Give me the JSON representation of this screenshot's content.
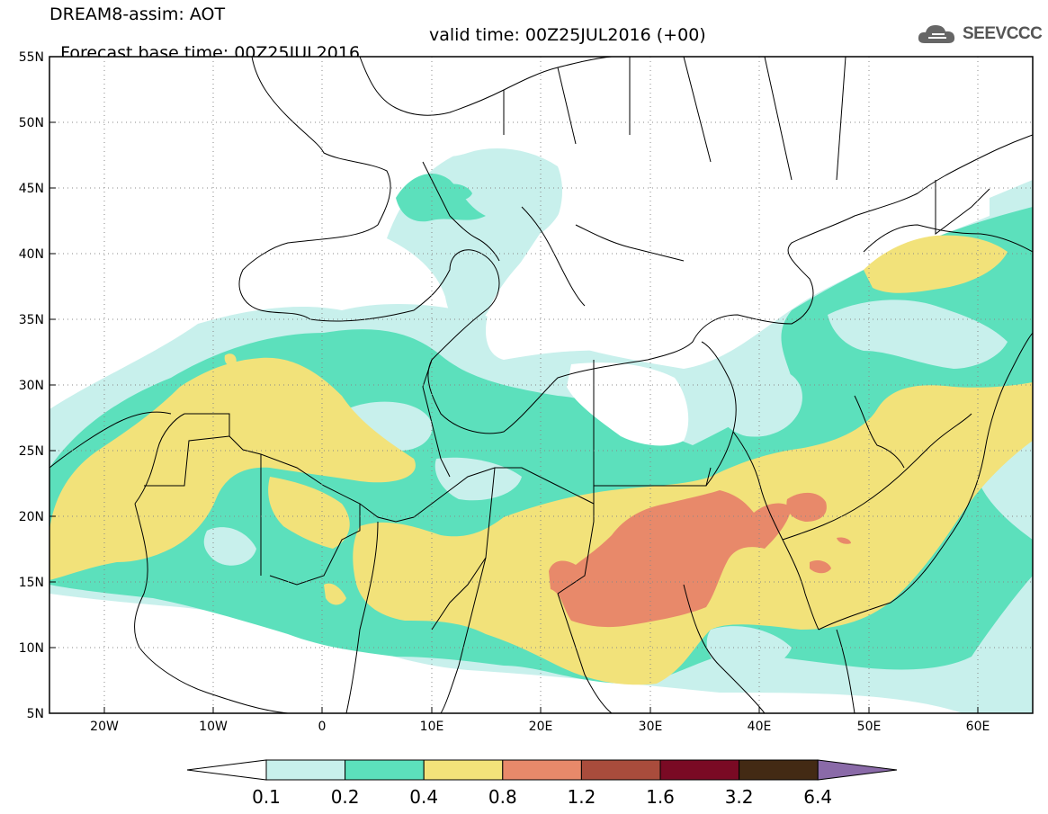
{
  "header": {
    "line1": "DREAM8-assim: AOT",
    "line2_left": "Forecast base time: 00Z25JUL2016",
    "line2_right": "valid time: 00Z25JUL2016 (+00)"
  },
  "logo": {
    "text": "SEEVCCC",
    "icon": "cloud-icon"
  },
  "map": {
    "variable": "AOT",
    "lon_range": [
      -25,
      65
    ],
    "lat_range": [
      5,
      55
    ],
    "lat_labels": [
      "55N",
      "50N",
      "45N",
      "40N",
      "35N",
      "30N",
      "25N",
      "20N",
      "15N",
      "10N",
      "5N"
    ],
    "lon_labels": [
      "20W",
      "10W",
      "0",
      "10E",
      "20E",
      "30E",
      "40E",
      "50E",
      "60E"
    ],
    "gridlines": "dotted",
    "colors": {
      "c01": "#c8f0ec",
      "c02": "#5ce0bc",
      "c04": "#f2e27a",
      "c08": "#e8896a",
      "c12": "#a94c3c",
      "c16": "#7a0a24",
      "c32": "#432a14",
      "c64": "#8a6aa8"
    }
  },
  "colorbar": {
    "labels": [
      "0.1",
      "0.2",
      "0.4",
      "0.8",
      "1.2",
      "1.6",
      "3.2",
      "6.4"
    ],
    "colors": [
      "#c8f0ec",
      "#5ce0bc",
      "#f2e27a",
      "#e8896a",
      "#a94c3c",
      "#7a0a24",
      "#432a14",
      "#8a6aa8"
    ],
    "under_color": "#ffffff"
  }
}
